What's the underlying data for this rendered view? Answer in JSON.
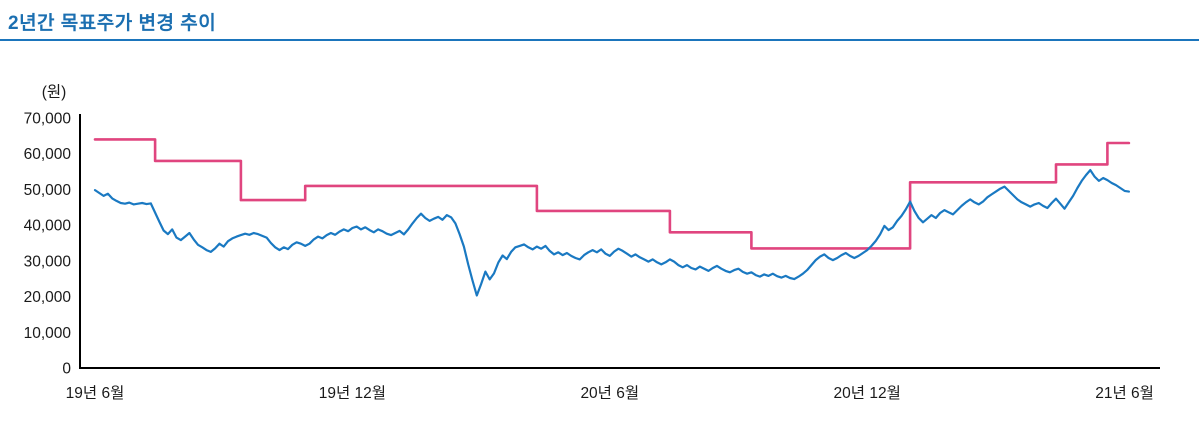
{
  "header": {
    "title": "2년간 목표주가 변경 추이",
    "accent_color": "#1b75bc"
  },
  "chart_data": {
    "type": "line",
    "title": "2년간 목표주가 변경 추이",
    "unit_label": "(원)",
    "legend": "none",
    "grid": false,
    "x_encoding": "months since first tick (19년 6월); span 0–24 months",
    "y_axis": {
      "min": 0,
      "max": 70000,
      "tick_values": [
        0,
        10000,
        20000,
        30000,
        40000,
        50000,
        60000,
        70000
      ],
      "tick_labels": [
        "0",
        "10,000",
        "20,000",
        "30,000",
        "40,000",
        "50,000",
        "60,000",
        "70,000"
      ]
    },
    "x_axis": {
      "tick_labels": [
        "19년 6월",
        "19년 12월",
        "20년 6월",
        "20년 12월",
        "21년 6월"
      ],
      "tick_positions_months": [
        0,
        6,
        12,
        18,
        24
      ]
    },
    "series": [
      {
        "id": "target-price-step",
        "type": "step",
        "color": "#e0457f",
        "stroke_width": 2.6,
        "t_end": 24.1,
        "steps": [
          {
            "t": 0.0,
            "v": 64000
          },
          {
            "t": 1.4,
            "v": 58000
          },
          {
            "t": 3.4,
            "v": 47000
          },
          {
            "t": 4.9,
            "v": 51000
          },
          {
            "t": 10.3,
            "v": 44000
          },
          {
            "t": 13.4,
            "v": 38000
          },
          {
            "t": 15.3,
            "v": 33500
          },
          {
            "t": 19.0,
            "v": 52000
          },
          {
            "t": 22.4,
            "v": 57000
          },
          {
            "t": 23.6,
            "v": 63000
          }
        ]
      },
      {
        "id": "stock-price-line",
        "type": "line",
        "color": "#1a79c2",
        "stroke_width": 2.2,
        "t_start": 0,
        "t_step": 0.1,
        "values": [
          49800,
          49000,
          48200,
          48800,
          47500,
          46800,
          46200,
          46000,
          46300,
          45800,
          46000,
          46200,
          45900,
          46100,
          43500,
          41000,
          38500,
          37500,
          38800,
          36500,
          35800,
          36800,
          37800,
          36000,
          34500,
          33800,
          33000,
          32500,
          33500,
          34800,
          34000,
          35500,
          36300,
          36800,
          37200,
          37600,
          37300,
          37800,
          37500,
          37000,
          36500,
          35000,
          33800,
          33000,
          33800,
          33300,
          34500,
          35200,
          34800,
          34200,
          34800,
          36000,
          36800,
          36300,
          37200,
          37800,
          37300,
          38200,
          38800,
          38300,
          39200,
          39600,
          38800,
          39400,
          38600,
          38000,
          38800,
          38300,
          37600,
          37200,
          37800,
          38400,
          37400,
          38800,
          40500,
          42000,
          43200,
          42000,
          41200,
          41800,
          42300,
          41500,
          42800,
          42200,
          40500,
          37500,
          34000,
          29000,
          24500,
          20300,
          23500,
          27000,
          24800,
          26500,
          29500,
          31500,
          30500,
          32500,
          33800,
          34200,
          34600,
          33800,
          33200,
          34000,
          33400,
          34200,
          32800,
          31800,
          32400,
          31600,
          32200,
          31400,
          30800,
          30400,
          31600,
          32400,
          33000,
          32400,
          33200,
          32000,
          31400,
          32600,
          33400,
          32800,
          32000,
          31200,
          31800,
          31000,
          30400,
          29800,
          30400,
          29600,
          29000,
          29600,
          30400,
          29800,
          28800,
          28200,
          28800,
          28000,
          27600,
          28400,
          27800,
          27200,
          28000,
          28600,
          27800,
          27200,
          26800,
          27400,
          27800,
          26900,
          26400,
          26800,
          26000,
          25600,
          26200,
          25800,
          26400,
          25700,
          25300,
          25800,
          25200,
          24900,
          25600,
          26400,
          27400,
          28800,
          30200,
          31200,
          31800,
          30800,
          30200,
          30800,
          31600,
          32200,
          31400,
          30800,
          31400,
          32200,
          33000,
          34200,
          35600,
          37400,
          39800,
          38600,
          39400,
          41200,
          42600,
          44400,
          46600,
          44000,
          42000,
          40800,
          41800,
          42800,
          42000,
          43400,
          44200,
          43600,
          43000,
          44200,
          45400,
          46400,
          47200,
          46400,
          45800,
          46600,
          47800,
          48600,
          49400,
          50200,
          50800,
          49600,
          48400,
          47200,
          46400,
          45800,
          45200,
          45800,
          46200,
          45400,
          44800,
          46200,
          47400,
          46000,
          44600,
          46400,
          48200,
          50400,
          52400,
          54000,
          55400,
          53600,
          52400,
          53200,
          52600,
          51800,
          51200,
          50400,
          49600,
          49400
        ]
      }
    ]
  }
}
